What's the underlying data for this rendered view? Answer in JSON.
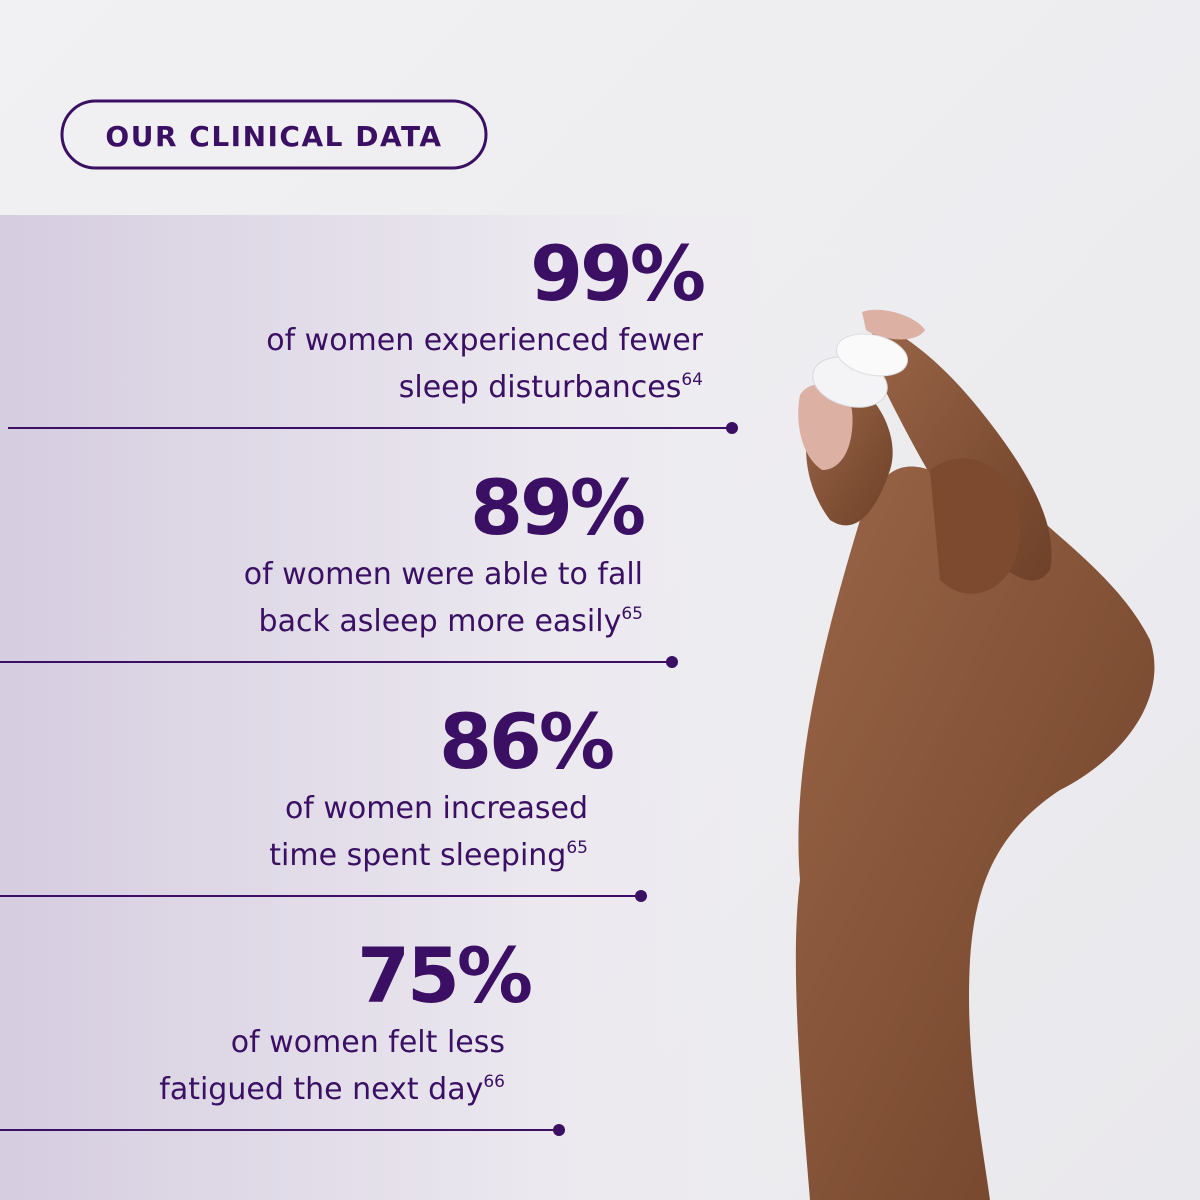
{
  "badge": "OUR CLINICAL DATA",
  "stats": [
    {
      "value": "99%",
      "lines": [
        "of women experienced fewer",
        "sleep disturbances"
      ],
      "footnote": "64"
    },
    {
      "value": "89%",
      "lines": [
        "of women were able to fall",
        "back asleep more easily"
      ],
      "footnote": "65"
    },
    {
      "value": "86%",
      "lines": [
        "of women increased",
        "time spent sleeping"
      ],
      "footnote": "65"
    },
    {
      "value": "75%",
      "lines": [
        "of women felt less",
        "fatigued the next day"
      ],
      "footnote": "66"
    }
  ]
}
